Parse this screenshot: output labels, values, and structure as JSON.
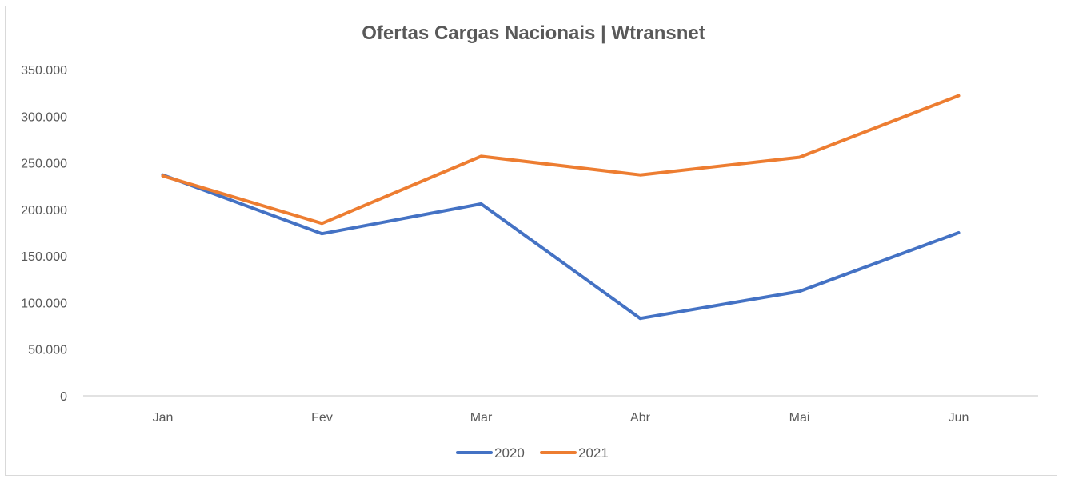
{
  "chart_data": {
    "type": "line",
    "title": "Ofertas Cargas Nacionais | Wtransnet",
    "xlabel": "",
    "ylabel": "",
    "categories": [
      "Jan",
      "Fev",
      "Mar",
      "Abr",
      "Mai",
      "Jun"
    ],
    "ylim": [
      0,
      350000
    ],
    "yticks": [
      0,
      50000,
      100000,
      150000,
      200000,
      250000,
      300000,
      350000
    ],
    "ytick_labels": [
      "0",
      "50.000",
      "100.000",
      "150.000",
      "200.000",
      "250.000",
      "300.000",
      "350.000"
    ],
    "grid": false,
    "legend_position": "bottom",
    "series": [
      {
        "name": "2020",
        "color": "#4472c4",
        "values": [
          237000,
          174000,
          206000,
          83000,
          112000,
          175000
        ]
      },
      {
        "name": "2021",
        "color": "#ed7d31",
        "values": [
          236000,
          185000,
          257000,
          237000,
          256000,
          322000
        ]
      }
    ]
  }
}
